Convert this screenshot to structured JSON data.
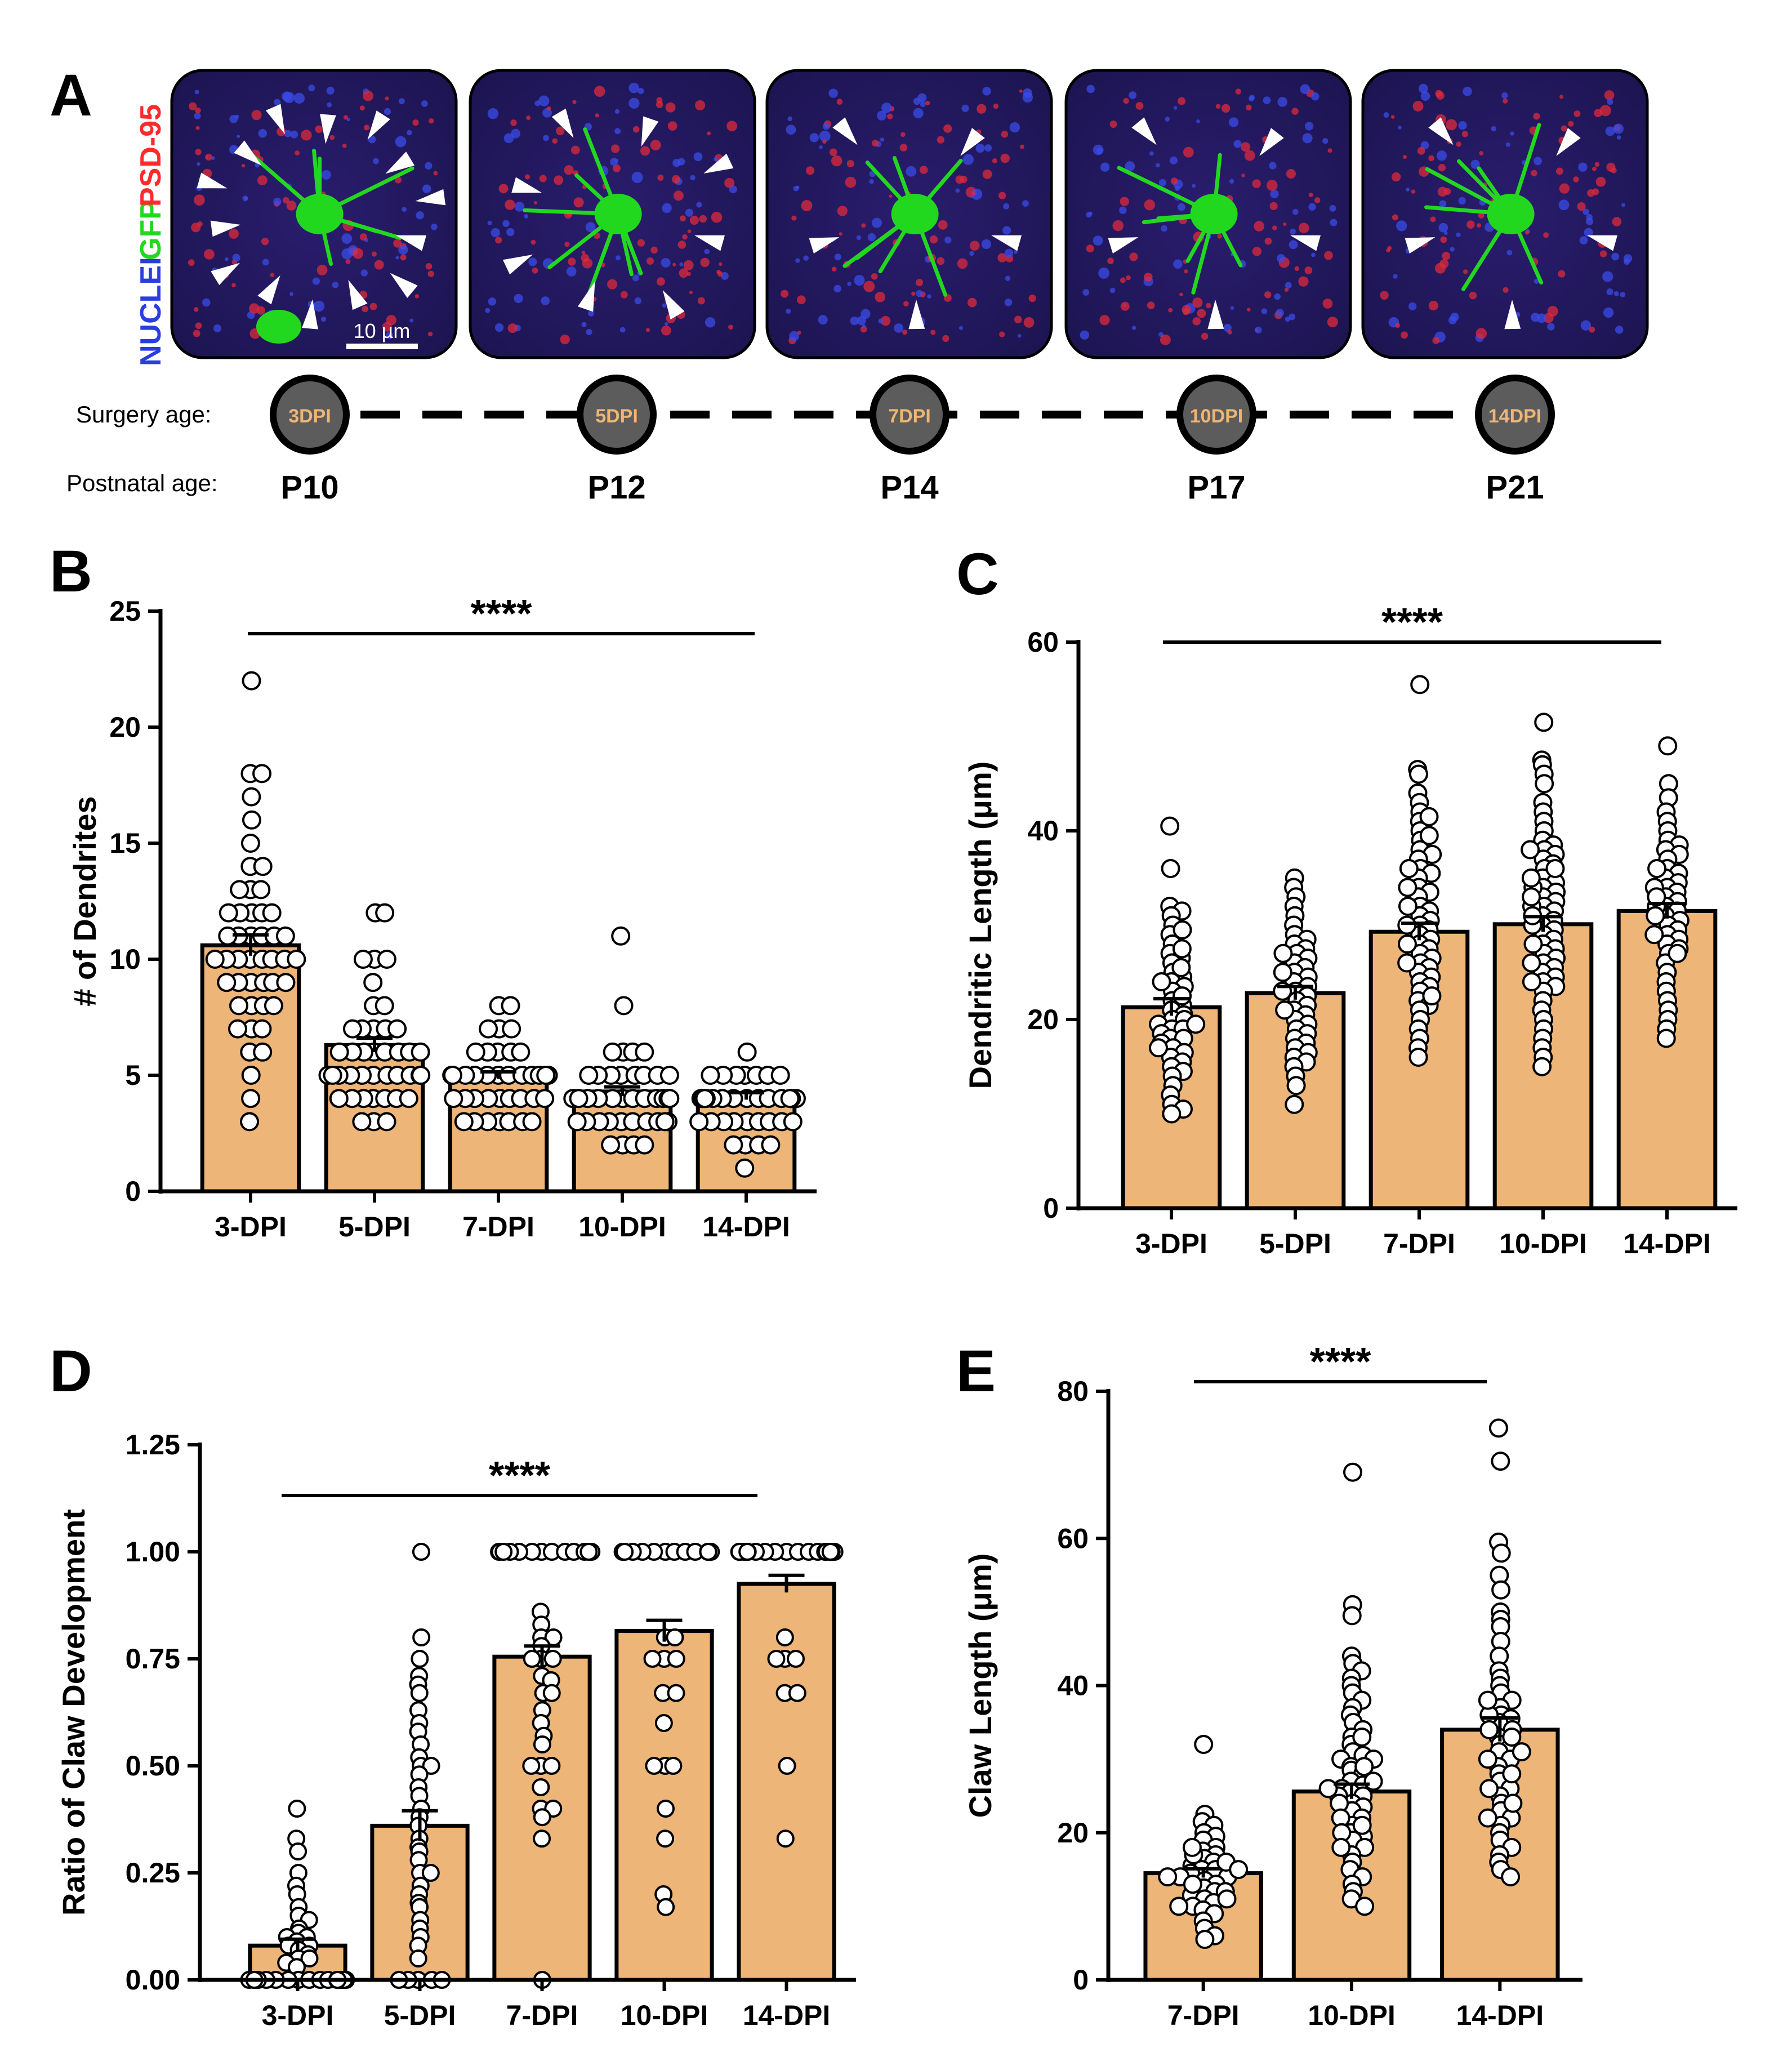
{
  "colors": {
    "bar": "#EDB577",
    "axis": "#000000",
    "point_fill": "#ffffff",
    "gfp": "#22d81f",
    "nuclei": "#2a3ee0",
    "psd95": "#ff2a2a",
    "timeline_dot": "#5c5c5c",
    "timeline_text": "#EDB577"
  },
  "panelA": {
    "letter": "A",
    "channel_labels": {
      "nuclei": "NUCLEI",
      "gfp": "GFP",
      "psd95": "PSD-95"
    },
    "scale_bar": "10 µm",
    "surgery_label": "Surgery age:",
    "postnatal_label": "Postnatal age:",
    "dpi_labels": [
      "3DPI",
      "5DPI",
      "7DPI",
      "10DPI",
      "14DPI"
    ],
    "postnatal_ages": [
      "P10",
      "P12",
      "P14",
      "P17",
      "P21"
    ],
    "arrowheads_per_image": [
      14,
      8,
      5,
      5,
      5
    ]
  },
  "chart_data": [
    {
      "id": "B",
      "type": "bar",
      "letter": "B",
      "categories": [
        "3-DPI",
        "5-DPI",
        "7-DPI",
        "10-DPI",
        "14-DPI"
      ],
      "values": [
        10.6,
        6.3,
        5.0,
        4.3,
        4.1
      ],
      "sem": [
        0.45,
        0.3,
        0.15,
        0.2,
        0.15
      ],
      "ylabel": "# of Dendrites",
      "xlabel": "",
      "ylim": [
        0,
        25
      ],
      "yticks": [
        0,
        5,
        10,
        15,
        20,
        25
      ],
      "significance": "****",
      "points": [
        [
          22,
          18,
          18,
          17,
          16,
          15,
          14,
          14,
          13,
          13,
          13,
          12,
          12,
          12,
          12,
          12,
          11,
          11,
          11,
          11,
          11,
          11,
          10,
          10,
          10,
          10,
          10,
          10,
          10,
          10,
          9,
          9,
          9,
          9,
          9,
          9,
          8,
          8,
          8,
          8,
          7,
          7,
          7,
          6,
          6,
          5,
          4,
          3
        ],
        [
          12,
          12,
          10,
          10,
          10,
          9,
          8,
          8,
          7,
          7,
          7,
          7,
          7,
          6,
          6,
          6,
          6,
          6,
          6,
          6,
          6,
          5,
          5,
          5,
          5,
          5,
          5,
          5,
          5,
          5,
          5,
          5,
          4,
          4,
          4,
          4,
          4,
          4,
          4,
          3,
          3,
          3
        ],
        [
          8,
          8,
          7,
          7,
          7,
          6,
          6,
          6,
          6,
          6,
          5,
          5,
          5,
          5,
          5,
          5,
          5,
          5,
          5,
          5,
          5,
          5,
          5,
          5,
          4,
          4,
          4,
          4,
          4,
          4,
          4,
          4,
          4,
          3,
          3,
          3,
          3,
          3,
          3,
          3
        ],
        [
          11,
          8,
          6,
          6,
          6,
          6,
          5,
          5,
          5,
          5,
          5,
          5,
          5,
          5,
          4,
          4,
          4,
          4,
          4,
          4,
          4,
          4,
          4,
          4,
          4,
          4,
          4,
          4,
          4,
          3,
          3,
          3,
          3,
          3,
          3,
          3,
          3,
          3,
          3,
          2,
          2,
          2,
          2
        ],
        [
          6,
          5,
          5,
          5,
          5,
          5,
          5,
          5,
          4,
          4,
          4,
          4,
          4,
          4,
          4,
          4,
          4,
          4,
          4,
          4,
          4,
          4,
          4,
          4,
          4,
          3,
          3,
          3,
          3,
          3,
          3,
          3,
          3,
          3,
          2,
          2,
          2,
          2,
          1
        ]
      ]
    },
    {
      "id": "C",
      "type": "bar",
      "letter": "C",
      "categories": [
        "3-DPI",
        "5-DPI",
        "7-DPI",
        "10-DPI",
        "14-DPI"
      ],
      "values": [
        21.3,
        22.8,
        29.3,
        30.1,
        31.5
      ],
      "sem": [
        0.9,
        0.7,
        0.9,
        0.8,
        0.8
      ],
      "ylabel": "Dendritic Length (μm)",
      "xlabel": "",
      "ylim": [
        0,
        60
      ],
      "yticks": [
        0,
        20,
        40,
        60
      ],
      "significance": "****",
      "points": [
        [
          40.5,
          36,
          32,
          31.5,
          31,
          30,
          29,
          28,
          27,
          26.5,
          26,
          25,
          24.5,
          24,
          23.5,
          23,
          22,
          21.5,
          21,
          20.5,
          20,
          20,
          19.5,
          19,
          19,
          18.5,
          18,
          18,
          17.5,
          17,
          16.5,
          16,
          15.5,
          15,
          14.5,
          14,
          13,
          12,
          11,
          10.5,
          10,
          22.5,
          24,
          25.5,
          27.5,
          29.5,
          17,
          19.5
        ],
        [
          35,
          34,
          33,
          32,
          31,
          30,
          29,
          28.5,
          28,
          27.5,
          27,
          26.5,
          26,
          25.5,
          25,
          24.5,
          24,
          23.5,
          23,
          22.5,
          22,
          21.5,
          21,
          20.5,
          20,
          19.5,
          19,
          18.5,
          18,
          17.5,
          17,
          16.5,
          16,
          15.5,
          15,
          14,
          13,
          11,
          25,
          23,
          21,
          27
        ],
        [
          55.5,
          46.5,
          46,
          44,
          43,
          42,
          41,
          40,
          39,
          38,
          37.5,
          37,
          36,
          35.5,
          35,
          34,
          33.5,
          33,
          32,
          31.5,
          31,
          30.5,
          30,
          29.5,
          29,
          28.5,
          28,
          27.5,
          27,
          26.5,
          26,
          25.5,
          25,
          24.5,
          24,
          23.5,
          23,
          22,
          21.5,
          21,
          20,
          19,
          18,
          17,
          16,
          30,
          32,
          34,
          36,
          28,
          26,
          22.5,
          39.5,
          41.5
        ],
        [
          51.5,
          47.5,
          47,
          46,
          45,
          43,
          42,
          41,
          40,
          39,
          38.5,
          38,
          37.5,
          37,
          36.5,
          36,
          35,
          34.5,
          34,
          33.5,
          33,
          32.5,
          32,
          31.5,
          31,
          30.5,
          30,
          29.5,
          29,
          28.5,
          28,
          27.5,
          27,
          26.5,
          26,
          25.5,
          25,
          24.5,
          24,
          23.5,
          23,
          22,
          21,
          20,
          19,
          18,
          17,
          16,
          15,
          30,
          32,
          34,
          36,
          38,
          28,
          26,
          24,
          31,
          33,
          35
        ],
        [
          49,
          45,
          43.5,
          42,
          41,
          40,
          39,
          38.5,
          38,
          37.5,
          37,
          36,
          35.5,
          35,
          34.5,
          34,
          33.5,
          33,
          32.5,
          32,
          31.5,
          31,
          30.5,
          30,
          29.5,
          29,
          28.5,
          28,
          27.5,
          27,
          26,
          25,
          24,
          23,
          22,
          21,
          20,
          19,
          18,
          32,
          34,
          36,
          33,
          31,
          29,
          27
        ]
      ]
    },
    {
      "id": "D",
      "type": "bar",
      "letter": "D",
      "categories": [
        "3-DPI",
        "5-DPI",
        "7-DPI",
        "10-DPI",
        "14-DPI"
      ],
      "values": [
        0.08,
        0.36,
        0.755,
        0.815,
        0.925
      ],
      "sem": [
        0.015,
        0.035,
        0.025,
        0.025,
        0.02
      ],
      "ylabel": "Ratio of Claw Development",
      "xlabel": "",
      "ylim": [
        0,
        1.25
      ],
      "yticks": [
        0.0,
        0.25,
        0.5,
        0.75,
        1.0,
        1.25
      ],
      "ytick_labels": [
        "0.00",
        "0.25",
        "0.50",
        "0.75",
        "1.00",
        "1.25"
      ],
      "significance": "****",
      "points": [
        [
          0.4,
          0.33,
          0.3,
          0.25,
          0.22,
          0.2,
          0.17,
          0.15,
          0.14,
          0.12,
          0.11,
          0.1,
          0.1,
          0.09,
          0.08,
          0.08,
          0.07,
          0.06,
          0.05,
          0.05,
          0.04,
          0.03,
          0,
          0,
          0,
          0,
          0,
          0,
          0,
          0,
          0,
          0,
          0,
          0,
          0,
          0,
          0,
          0,
          0,
          0
        ],
        [
          1.0,
          0.8,
          0.75,
          0.71,
          0.69,
          0.67,
          0.63,
          0.6,
          0.58,
          0.55,
          0.52,
          0.5,
          0.5,
          0.48,
          0.45,
          0.43,
          0.4,
          0.38,
          0.36,
          0.33,
          0.31,
          0.3,
          0.28,
          0.25,
          0.25,
          0.22,
          0.2,
          0.18,
          0.17,
          0.14,
          0.12,
          0.1,
          0.08,
          0.05,
          0,
          0,
          0,
          0,
          0
        ],
        [
          1,
          1,
          1,
          1,
          1,
          1,
          1,
          1,
          1,
          1,
          1,
          1,
          1,
          0.86,
          0.83,
          0.8,
          0.8,
          0.78,
          0.75,
          0.75,
          0.75,
          0.71,
          0.7,
          0.67,
          0.67,
          0.63,
          0.6,
          0.57,
          0.55,
          0.5,
          0.5,
          0.5,
          0.45,
          0.4,
          0.4,
          0.38,
          0.33,
          0
        ],
        [
          1,
          1,
          1,
          1,
          1,
          1,
          1,
          1,
          1,
          1,
          1,
          1,
          0.8,
          0.8,
          0.75,
          0.75,
          0.75,
          0.67,
          0.67,
          0.6,
          0.5,
          0.5,
          0.5,
          0.4,
          0.33,
          0.2,
          0.17
        ],
        [
          1,
          1,
          1,
          1,
          1,
          1,
          1,
          1,
          1,
          1,
          1,
          1,
          1,
          1,
          1,
          1,
          1,
          1,
          1,
          1,
          1,
          0.8,
          0.75,
          0.75,
          0.75,
          0.67,
          0.67,
          0.5,
          0.33
        ]
      ]
    },
    {
      "id": "E",
      "type": "bar",
      "letter": "E",
      "categories": [
        "7-DPI",
        "10-DPI",
        "14-DPI"
      ],
      "values": [
        14.5,
        25.6,
        34.0
      ],
      "sem": [
        0.6,
        1.0,
        1.6
      ],
      "ylabel": "Claw Length (μm)",
      "xlabel": "",
      "ylim": [
        0,
        80
      ],
      "yticks": [
        0,
        20,
        40,
        60,
        80
      ],
      "significance": "****",
      "points": [
        [
          32,
          22.5,
          21.5,
          21,
          20,
          19.5,
          19,
          18,
          17.5,
          17,
          16.5,
          16,
          15.5,
          15,
          15,
          14.5,
          14,
          14,
          13.5,
          13,
          12.5,
          12,
          11.5,
          11,
          10.5,
          10,
          9.5,
          9,
          8,
          7,
          6,
          5.5,
          16,
          17,
          18,
          13,
          12,
          15,
          14,
          11,
          10
        ],
        [
          69,
          51,
          49.5,
          44,
          43,
          42,
          41,
          40,
          39,
          38,
          37,
          36,
          35,
          34,
          33,
          32,
          31,
          30.5,
          30,
          29,
          28.5,
          28,
          27,
          26.5,
          26,
          25.5,
          25,
          24,
          23.5,
          23,
          22,
          21,
          20,
          19.5,
          19,
          18,
          17,
          16,
          15,
          14,
          13,
          12,
          11,
          10,
          33,
          30,
          27,
          25,
          24,
          22,
          20,
          18,
          29,
          26,
          21
        ],
        [
          75,
          70.5,
          59.5,
          58,
          55,
          53,
          50,
          49,
          48,
          46,
          44,
          42,
          41,
          40,
          39,
          38,
          37,
          36,
          35.5,
          35,
          34,
          33,
          32,
          31.5,
          31,
          30,
          29,
          28,
          27,
          26,
          25,
          24,
          23,
          22,
          21,
          20,
          19,
          18,
          17,
          16,
          15,
          14,
          36,
          33,
          30,
          28,
          26,
          24,
          22,
          38,
          34,
          31
        ]
      ]
    }
  ]
}
